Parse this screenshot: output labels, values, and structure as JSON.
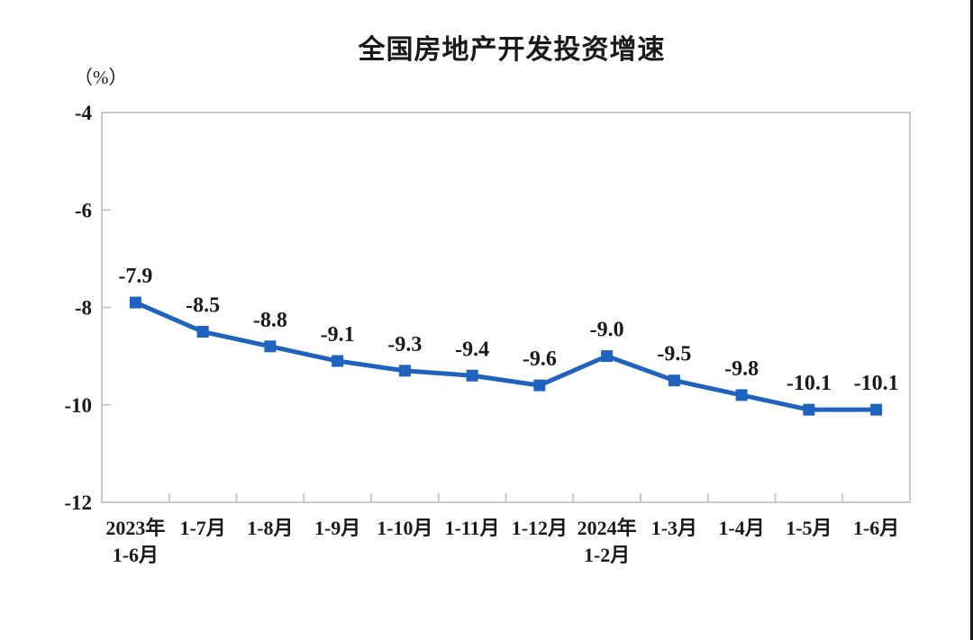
{
  "title": "全国房地产开发投资增速",
  "unit_label": "（%）",
  "chart_data": {
    "type": "line",
    "title": "全国房地产开发投资增速",
    "unit": "（%）",
    "categories": [
      [
        "2023年",
        "1-6月"
      ],
      [
        "1-7月"
      ],
      [
        "1-8月"
      ],
      [
        "1-9月"
      ],
      [
        "1-10月"
      ],
      [
        "1-11月"
      ],
      [
        "1-12月"
      ],
      [
        "2024年",
        "1-2月"
      ],
      [
        "1-3月"
      ],
      [
        "1-4月"
      ],
      [
        "1-5月"
      ],
      [
        "1-6月"
      ]
    ],
    "values": [
      -7.9,
      -8.5,
      -8.8,
      -9.1,
      -9.3,
      -9.4,
      -9.6,
      -9.0,
      -9.5,
      -9.8,
      -10.1,
      -10.1
    ],
    "data_labels": [
      "-7.9",
      "-8.5",
      "-8.8",
      "-9.1",
      "-9.3",
      "-9.4",
      "-9.6",
      "-9.0",
      "-9.5",
      "-9.8",
      "-10.1",
      "-10.1"
    ],
    "ylim": [
      -12,
      -4
    ],
    "yticks": [
      "-4",
      "-6",
      "-8",
      "-10",
      "-12"
    ],
    "ytick_values": [
      -4,
      -6,
      -8,
      -10,
      -12
    ],
    "grid": "off",
    "legend": "none",
    "marker": "square",
    "line_color": "#1f63be",
    "axis_color": "#c9c9c9",
    "text_color": "#1a1a1a"
  }
}
